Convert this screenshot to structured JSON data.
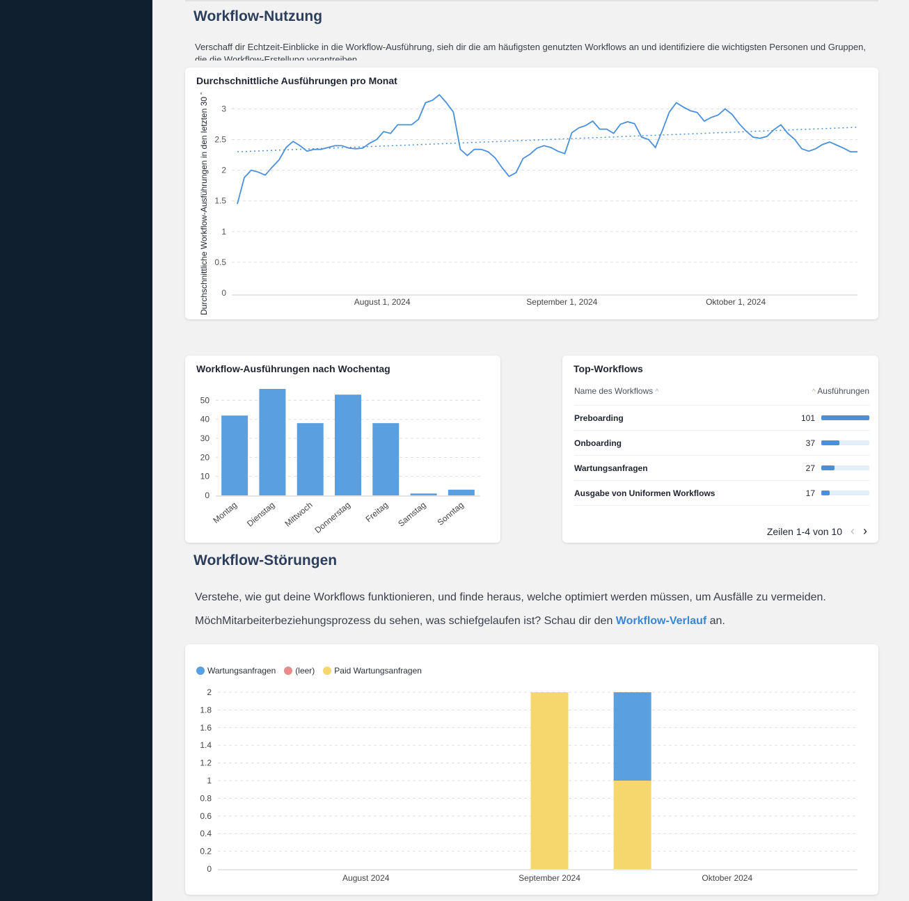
{
  "usage": {
    "title": "Workflow-Nutzung",
    "description": "Verschaff dir Echtzeit-Einblicke in die Workflow-Ausführung, sieh dir die am häufigsten genutzten Workflows an und identifiziere die wichtigsten Personen und Gruppen, die die Workflow-Erstellung vorantreiben."
  },
  "line_chart": {
    "title": "Durchschnittliche Ausführungen pro Monat",
    "ylabel": "Durchschnittliche Workflow-Ausführungen in den letzten 30 Tagen",
    "color": "#4a90d9"
  },
  "weekday_chart": {
    "title": "Workflow-Ausführungen nach Wochentag",
    "color": "#5a9fe0"
  },
  "top_workflows": {
    "title": "Top-Workflows",
    "col_name": "Name des Workflows",
    "col_count": "Ausführungen",
    "rows": [
      {
        "name": "Preboarding",
        "count": "101",
        "fraction": 1.0
      },
      {
        "name": "Onboarding",
        "count": "37",
        "fraction": 0.37
      },
      {
        "name": "Wartungsanfragen",
        "count": "27",
        "fraction": 0.27
      },
      {
        "name": "Ausgabe von Uniformen Workflows",
        "count": "17",
        "fraction": 0.17
      }
    ],
    "pagination": "Zeilen 1-4 von 10"
  },
  "failures": {
    "title": "Workflow-Störungen",
    "line1": "Verstehe, wie gut deine Workflows funktionieren, und finde heraus, welche optimiert werden müssen, um Ausfälle zu vermeiden.",
    "line2_before": "MöchMitarbeiterbeziehungsprozess du sehen, was schiefgelaufen ist? Schau dir den ",
    "line2_link": "Workflow-Verlauf",
    "line2_after": " an."
  },
  "chart_data": [
    {
      "type": "line",
      "title": "Durchschnittliche Ausführungen pro Monat",
      "ylabel": "Durchschnittliche Workflow-Ausführungen in den letzten 30 Tagen",
      "x_start": "2024-07-07",
      "x_end": "2024-10-22",
      "x_ticks": [
        "August 1, 2024",
        "September 1, 2024",
        "Oktober 1, 2024"
      ],
      "y_ticks": [
        "0",
        "0.5",
        "1",
        "1.5",
        "2",
        "2.5",
        "3"
      ],
      "ylim": [
        0,
        3.3
      ],
      "grid": true,
      "values": [
        1.45,
        1.88,
        2.0,
        1.97,
        1.92,
        2.05,
        2.17,
        2.37,
        2.47,
        2.4,
        2.31,
        2.34,
        2.34,
        2.37,
        2.4,
        2.4,
        2.36,
        2.35,
        2.36,
        2.44,
        2.5,
        2.63,
        2.6,
        2.74,
        2.74,
        2.74,
        2.83,
        3.1,
        3.14,
        3.23,
        3.1,
        2.95,
        2.34,
        2.24,
        2.34,
        2.34,
        2.3,
        2.2,
        2.04,
        1.9,
        1.96,
        2.19,
        2.26,
        2.36,
        2.4,
        2.37,
        2.31,
        2.27,
        2.61,
        2.69,
        2.73,
        2.8,
        2.67,
        2.67,
        2.6,
        2.75,
        2.79,
        2.76,
        2.54,
        2.5,
        2.37,
        2.65,
        2.95,
        3.1,
        3.03,
        2.97,
        2.94,
        2.8,
        2.86,
        2.9,
        3.0,
        2.91,
        2.76,
        2.64,
        2.54,
        2.52,
        2.55,
        2.66,
        2.74,
        2.6,
        2.5,
        2.35,
        2.31,
        2.35,
        2.42,
        2.46,
        2.41,
        2.36,
        2.3,
        2.3
      ],
      "trend": {
        "start": 2.3,
        "end": 2.7
      }
    },
    {
      "type": "bar",
      "title": "Workflow-Ausführungen nach Wochentag",
      "categories": [
        "Montag",
        "Dienstag",
        "Mittwoch",
        "Donnerstag",
        "Freitag",
        "Samstag",
        "Sonntag"
      ],
      "values": [
        42,
        56,
        38,
        53,
        38,
        1,
        3
      ],
      "y_ticks": [
        "0",
        "10",
        "20",
        "30",
        "40",
        "50"
      ],
      "ylim": [
        0,
        56
      ],
      "grid": true
    },
    {
      "type": "bar",
      "stacked": true,
      "x_ticks": [
        "August 2024",
        "September 2024",
        "Oktober 2024"
      ],
      "y_ticks": [
        "0",
        "0.2",
        "0.4",
        "0.6",
        "0.8",
        "1",
        "1.2",
        "1.4",
        "1.6",
        "1.8",
        "2"
      ],
      "ylim": [
        0,
        2
      ],
      "legend_position": "top-left",
      "grid": true,
      "categories": [
        "2024-09-01",
        "2024-09-15"
      ],
      "series": [
        {
          "name": "Wartungsanfragen",
          "color": "#5a9fe0",
          "values": [
            0,
            1
          ]
        },
        {
          "name": "(leer)",
          "color": "#e88b8b",
          "values": [
            0,
            0
          ]
        },
        {
          "name": "Paid Wartungsanfragen",
          "color": "#f5d76e",
          "values": [
            2,
            1
          ]
        }
      ]
    }
  ]
}
